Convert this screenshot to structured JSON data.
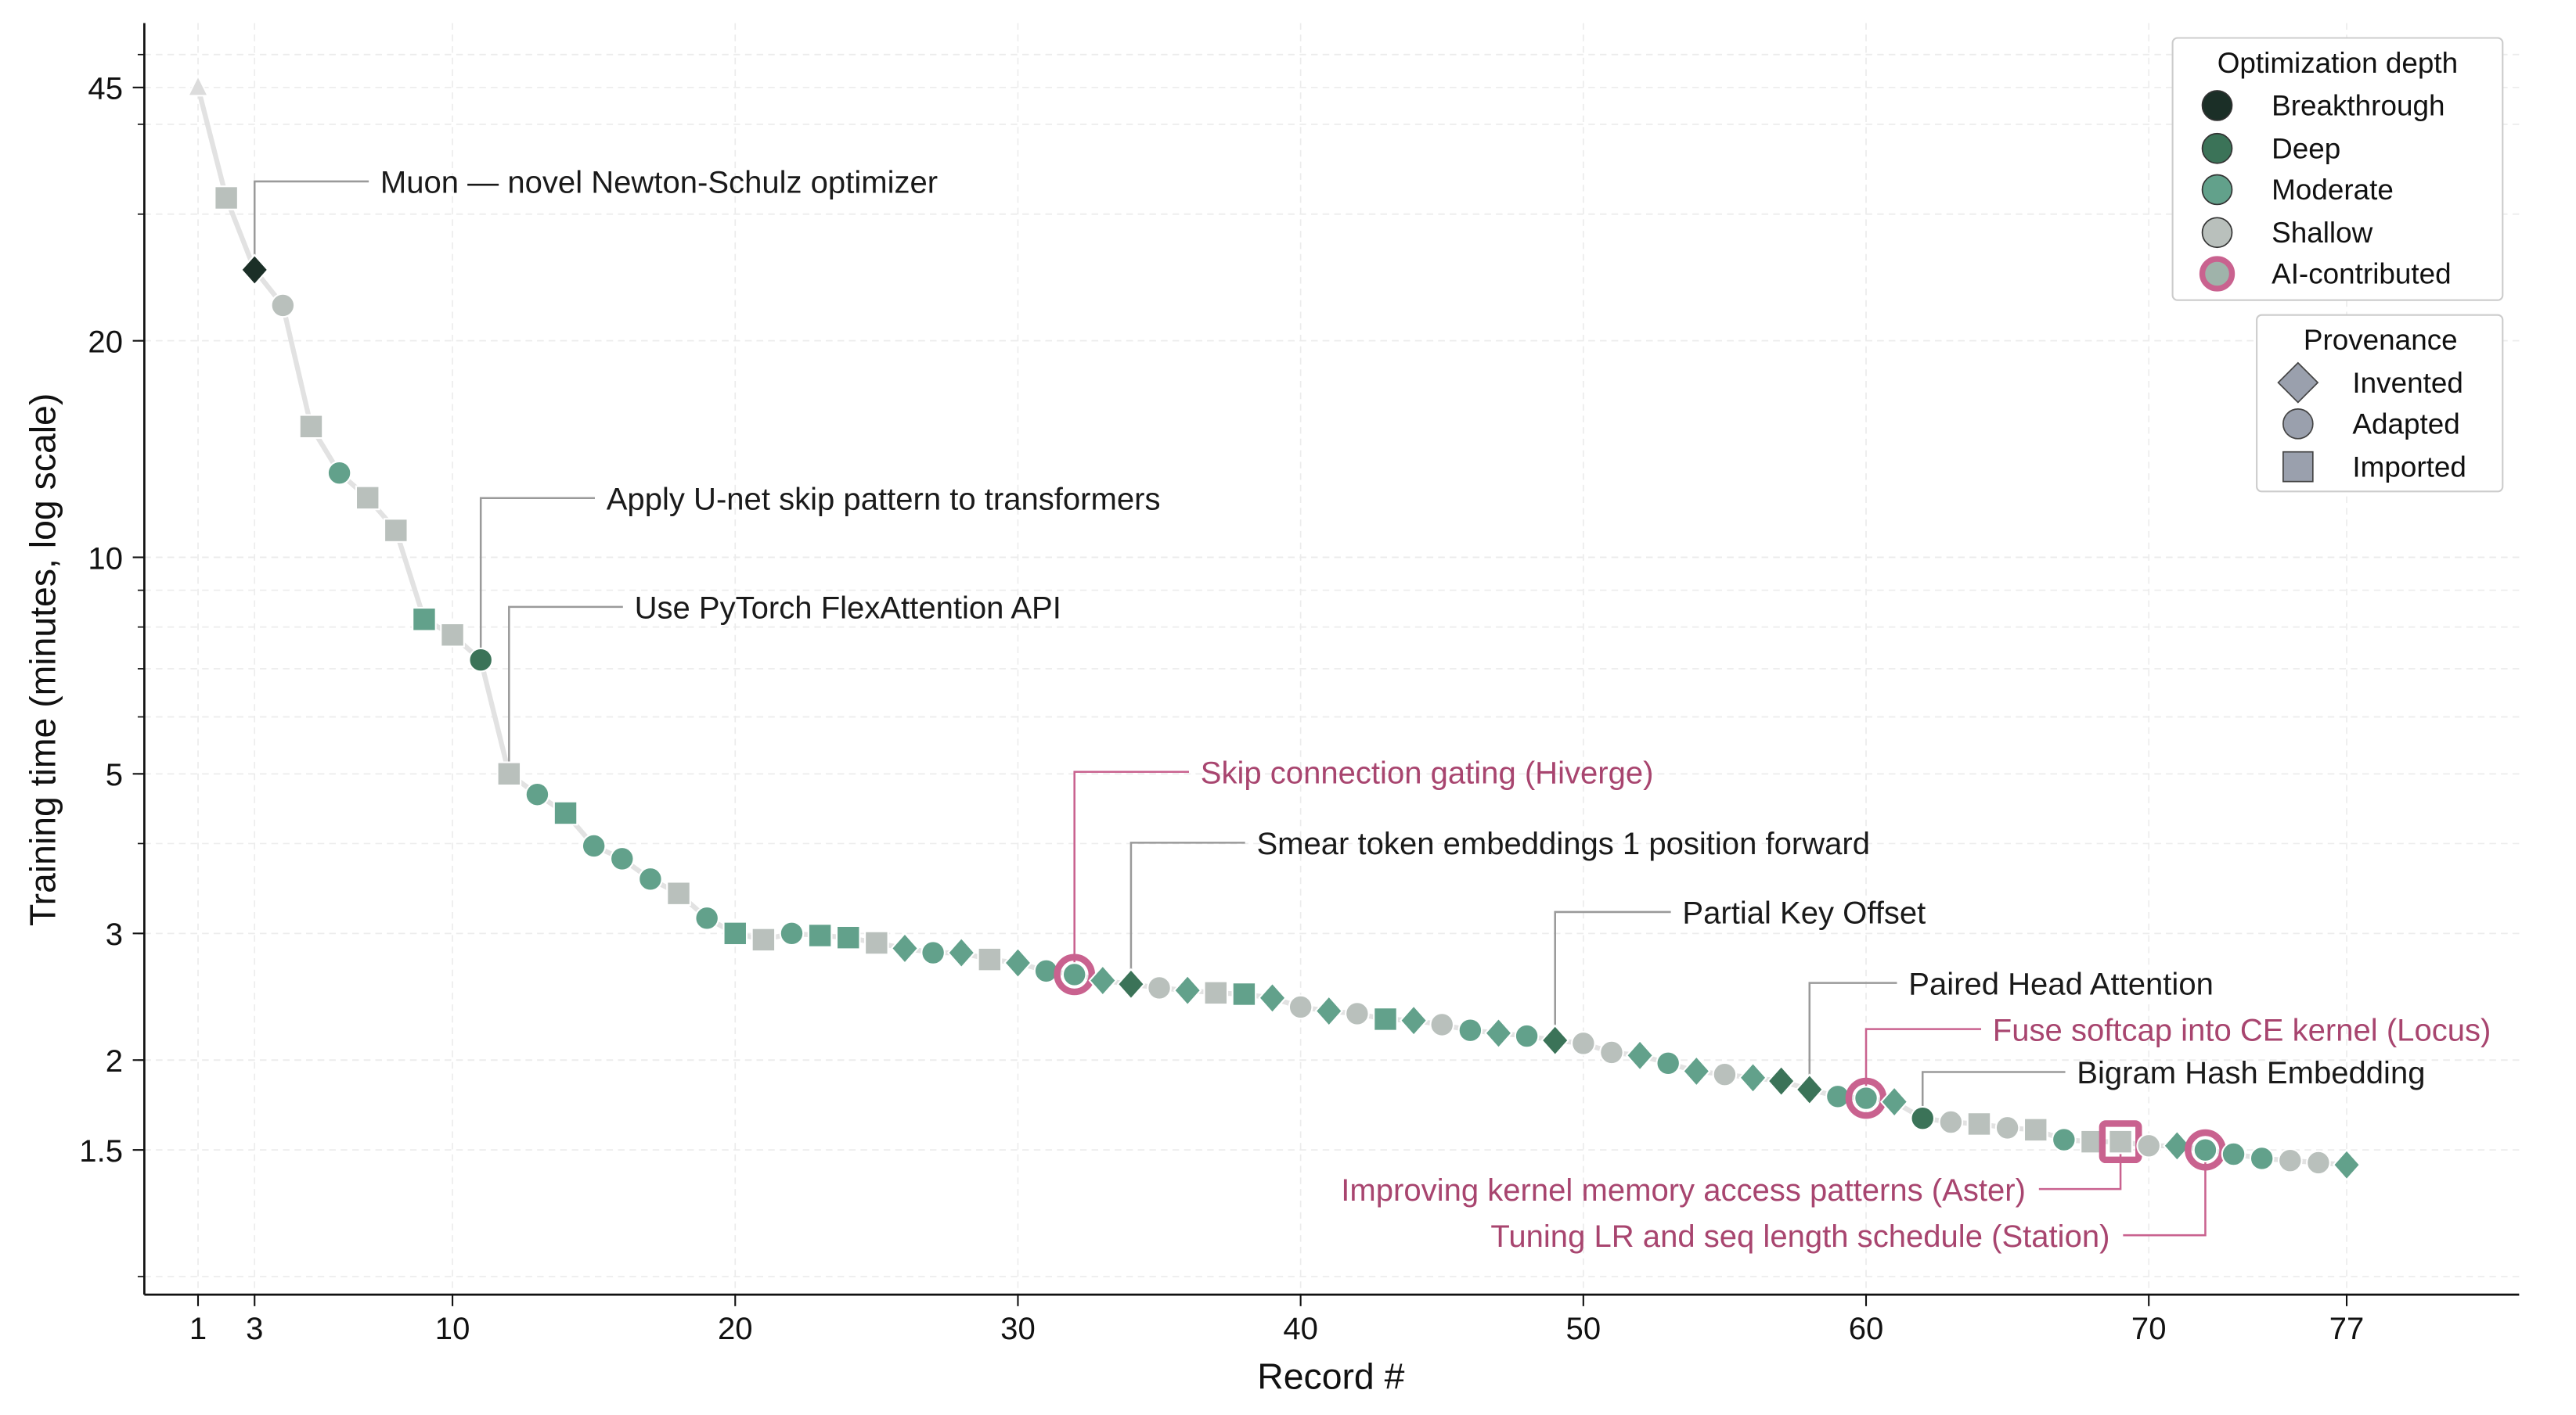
{
  "chart_data": {
    "type": "line",
    "xlabel": "Record #",
    "ylabel": "Training time (minutes, log scale)",
    "yscale": "log",
    "xlim": [
      -0.9,
      83.1
    ],
    "ylim": [
      0.944,
      55.3
    ],
    "grid": true,
    "xticks": [
      1,
      3,
      10,
      20,
      30,
      40,
      50,
      60,
      70,
      77
    ],
    "yticks": [
      45,
      20,
      10,
      5,
      3,
      2,
      1.5
    ],
    "colors": {
      "Breakthrough": "#1b2f27",
      "Deep": "#3b7358",
      "Moderate": "#62a18b",
      "Shallow": "#b9c0bc",
      "Baseline": "#dcdcdc",
      "AI-contributed": "#c9628f",
      "line": "#e2e2e2",
      "annotation_ai": "#a8456f"
    },
    "points": [
      {
        "x": 1,
        "y": 45,
        "shape": "triangle",
        "depth": "Baseline"
      },
      {
        "x": 2,
        "y": 31.6,
        "shape": "square",
        "depth": "Shallow"
      },
      {
        "x": 3,
        "y": 25.1,
        "shape": "diamond",
        "depth": "Breakthrough"
      },
      {
        "x": 4,
        "y": 22.4,
        "shape": "circle",
        "depth": "Shallow"
      },
      {
        "x": 5,
        "y": 15.2,
        "shape": "square",
        "depth": "Shallow"
      },
      {
        "x": 6,
        "y": 13.1,
        "shape": "circle",
        "depth": "Moderate"
      },
      {
        "x": 7,
        "y": 12.1,
        "shape": "square",
        "depth": "Shallow"
      },
      {
        "x": 8,
        "y": 10.9,
        "shape": "square",
        "depth": "Shallow"
      },
      {
        "x": 9,
        "y": 8.2,
        "shape": "square",
        "depth": "Moderate"
      },
      {
        "x": 10,
        "y": 7.8,
        "shape": "square",
        "depth": "Shallow"
      },
      {
        "x": 11,
        "y": 7.2,
        "shape": "circle",
        "depth": "Deep"
      },
      {
        "x": 12,
        "y": 5.0,
        "shape": "square",
        "depth": "Shallow"
      },
      {
        "x": 13,
        "y": 4.68,
        "shape": "circle",
        "depth": "Moderate"
      },
      {
        "x": 14,
        "y": 4.41,
        "shape": "square",
        "depth": "Moderate"
      },
      {
        "x": 15,
        "y": 3.97,
        "shape": "circle",
        "depth": "Moderate"
      },
      {
        "x": 16,
        "y": 3.81,
        "shape": "circle",
        "depth": "Moderate"
      },
      {
        "x": 17,
        "y": 3.57,
        "shape": "circle",
        "depth": "Moderate"
      },
      {
        "x": 18,
        "y": 3.41,
        "shape": "square",
        "depth": "Shallow"
      },
      {
        "x": 19,
        "y": 3.15,
        "shape": "circle",
        "depth": "Moderate"
      },
      {
        "x": 20,
        "y": 3.0,
        "shape": "square",
        "depth": "Moderate"
      },
      {
        "x": 21,
        "y": 2.94,
        "shape": "square",
        "depth": "Shallow"
      },
      {
        "x": 22,
        "y": 3.0,
        "shape": "circle",
        "depth": "Moderate"
      },
      {
        "x": 23,
        "y": 2.98,
        "shape": "square",
        "depth": "Moderate"
      },
      {
        "x": 24,
        "y": 2.96,
        "shape": "square",
        "depth": "Moderate"
      },
      {
        "x": 25,
        "y": 2.91,
        "shape": "square",
        "depth": "Shallow"
      },
      {
        "x": 26,
        "y": 2.86,
        "shape": "diamond",
        "depth": "Moderate"
      },
      {
        "x": 27,
        "y": 2.82,
        "shape": "circle",
        "depth": "Moderate"
      },
      {
        "x": 28,
        "y": 2.82,
        "shape": "diamond",
        "depth": "Moderate"
      },
      {
        "x": 29,
        "y": 2.76,
        "shape": "square",
        "depth": "Shallow"
      },
      {
        "x": 30,
        "y": 2.73,
        "shape": "diamond",
        "depth": "Moderate"
      },
      {
        "x": 31,
        "y": 2.66,
        "shape": "circle",
        "depth": "Moderate"
      },
      {
        "x": 32,
        "y": 2.63,
        "shape": "circle",
        "depth": "Moderate",
        "ai": true
      },
      {
        "x": 33,
        "y": 2.58,
        "shape": "diamond",
        "depth": "Moderate"
      },
      {
        "x": 34,
        "y": 2.55,
        "shape": "diamond",
        "depth": "Deep"
      },
      {
        "x": 35,
        "y": 2.52,
        "shape": "circle",
        "depth": "Shallow"
      },
      {
        "x": 36,
        "y": 2.5,
        "shape": "diamond",
        "depth": "Moderate"
      },
      {
        "x": 37,
        "y": 2.48,
        "shape": "square",
        "depth": "Shallow"
      },
      {
        "x": 38,
        "y": 2.47,
        "shape": "square",
        "depth": "Moderate"
      },
      {
        "x": 39,
        "y": 2.44,
        "shape": "diamond",
        "depth": "Moderate"
      },
      {
        "x": 40,
        "y": 2.37,
        "shape": "circle",
        "depth": "Shallow"
      },
      {
        "x": 41,
        "y": 2.34,
        "shape": "diamond",
        "depth": "Moderate"
      },
      {
        "x": 42,
        "y": 2.32,
        "shape": "circle",
        "depth": "Shallow"
      },
      {
        "x": 43,
        "y": 2.28,
        "shape": "square",
        "depth": "Moderate"
      },
      {
        "x": 44,
        "y": 2.27,
        "shape": "diamond",
        "depth": "Moderate"
      },
      {
        "x": 45,
        "y": 2.24,
        "shape": "circle",
        "depth": "Shallow"
      },
      {
        "x": 46,
        "y": 2.2,
        "shape": "circle",
        "depth": "Moderate"
      },
      {
        "x": 47,
        "y": 2.18,
        "shape": "diamond",
        "depth": "Moderate"
      },
      {
        "x": 48,
        "y": 2.16,
        "shape": "circle",
        "depth": "Moderate"
      },
      {
        "x": 49,
        "y": 2.13,
        "shape": "diamond",
        "depth": "Deep"
      },
      {
        "x": 50,
        "y": 2.11,
        "shape": "circle",
        "depth": "Shallow"
      },
      {
        "x": 51,
        "y": 2.05,
        "shape": "circle",
        "depth": "Shallow"
      },
      {
        "x": 52,
        "y": 2.03,
        "shape": "diamond",
        "depth": "Moderate"
      },
      {
        "x": 53,
        "y": 1.98,
        "shape": "circle",
        "depth": "Moderate"
      },
      {
        "x": 54,
        "y": 1.93,
        "shape": "diamond",
        "depth": "Moderate"
      },
      {
        "x": 55,
        "y": 1.91,
        "shape": "circle",
        "depth": "Shallow"
      },
      {
        "x": 56,
        "y": 1.89,
        "shape": "diamond",
        "depth": "Moderate"
      },
      {
        "x": 57,
        "y": 1.87,
        "shape": "diamond",
        "depth": "Deep"
      },
      {
        "x": 58,
        "y": 1.82,
        "shape": "diamond",
        "depth": "Deep"
      },
      {
        "x": 59,
        "y": 1.78,
        "shape": "circle",
        "depth": "Moderate"
      },
      {
        "x": 60,
        "y": 1.77,
        "shape": "circle",
        "depth": "Moderate",
        "ai": true
      },
      {
        "x": 61,
        "y": 1.75,
        "shape": "diamond",
        "depth": "Moderate"
      },
      {
        "x": 62,
        "y": 1.66,
        "shape": "circle",
        "depth": "Deep"
      },
      {
        "x": 63,
        "y": 1.64,
        "shape": "circle",
        "depth": "Shallow"
      },
      {
        "x": 64,
        "y": 1.63,
        "shape": "square",
        "depth": "Shallow"
      },
      {
        "x": 65,
        "y": 1.61,
        "shape": "circle",
        "depth": "Shallow"
      },
      {
        "x": 66,
        "y": 1.6,
        "shape": "square",
        "depth": "Shallow"
      },
      {
        "x": 67,
        "y": 1.55,
        "shape": "circle",
        "depth": "Moderate"
      },
      {
        "x": 68,
        "y": 1.54,
        "shape": "square",
        "depth": "Shallow"
      },
      {
        "x": 69,
        "y": 1.54,
        "shape": "square",
        "depth": "Shallow",
        "ai": true
      },
      {
        "x": 70,
        "y": 1.52,
        "shape": "circle",
        "depth": "Shallow"
      },
      {
        "x": 71,
        "y": 1.52,
        "shape": "diamond",
        "depth": "Moderate"
      },
      {
        "x": 72,
        "y": 1.5,
        "shape": "circle",
        "depth": "Moderate",
        "ai": true
      },
      {
        "x": 73,
        "y": 1.48,
        "shape": "circle",
        "depth": "Moderate"
      },
      {
        "x": 74,
        "y": 1.46,
        "shape": "circle",
        "depth": "Moderate"
      },
      {
        "x": 75,
        "y": 1.45,
        "shape": "circle",
        "depth": "Shallow"
      },
      {
        "x": 76,
        "y": 1.44,
        "shape": "circle",
        "depth": "Shallow"
      },
      {
        "x": 77,
        "y": 1.43,
        "shape": "diamond",
        "depth": "Moderate"
      }
    ],
    "annotations": [
      {
        "x": 3,
        "text": "Muon — novel Newton-Schulz optimizer",
        "ai": false
      },
      {
        "x": 11,
        "text": "Apply U-net skip pattern to transformers",
        "ai": false
      },
      {
        "x": 12,
        "text": "Use PyTorch FlexAttention API",
        "ai": false
      },
      {
        "x": 32,
        "text": "Skip connection gating (Hiverge)",
        "ai": true
      },
      {
        "x": 34,
        "text": "Smear token embeddings 1 position forward",
        "ai": false
      },
      {
        "x": 49,
        "text": "Partial Key Offset",
        "ai": false
      },
      {
        "x": 58,
        "text": "Paired Head Attention",
        "ai": false
      },
      {
        "x": 60,
        "text": "Fuse softcap into CE kernel (Locus)",
        "ai": true
      },
      {
        "x": 62,
        "text": "Bigram Hash Embedding",
        "ai": false
      },
      {
        "x": 69,
        "text": "Improving kernel memory access patterns (Aster)",
        "ai": true
      },
      {
        "x": 72,
        "text": "Tuning LR and seq length schedule (Station)",
        "ai": true
      }
    ],
    "legend_depth": {
      "title": "Optimization depth",
      "placement": "top-right",
      "entries": [
        "Breakthrough",
        "Deep",
        "Moderate",
        "Shallow",
        "AI-contributed"
      ]
    },
    "legend_provenance": {
      "title": "Provenance",
      "placement": "top-right",
      "entries": [
        {
          "label": "Invented",
          "shape": "diamond"
        },
        {
          "label": "Adapted",
          "shape": "circle"
        },
        {
          "label": "Imported",
          "shape": "square"
        }
      ]
    }
  }
}
